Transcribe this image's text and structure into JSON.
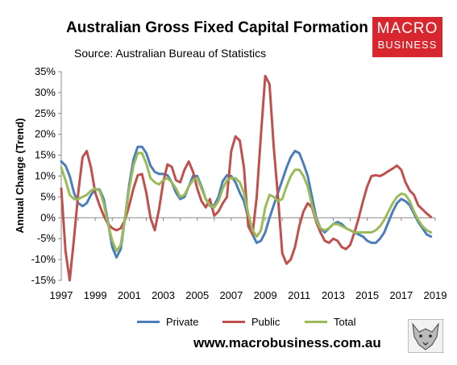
{
  "header": {
    "title": "Australian Gross Fixed Capital Formation",
    "subtitle": "Source: Australian Bureau of Statistics"
  },
  "logo": {
    "line1": "MACRO",
    "line2": "BUSINESS",
    "color": "#d7262e"
  },
  "footer": {
    "website": "www.macrobusiness.com.au"
  },
  "chart_data": {
    "type": "line",
    "title": "Australian Gross Fixed Capital Formation",
    "subtitle": "Source: Australian Bureau of Statistics",
    "xlabel": "",
    "ylabel": "Annual Change (Trend)",
    "xlim": [
      1997,
      2019
    ],
    "ylim": [
      -15,
      35
    ],
    "x_ticks": [
      "1997",
      "1999",
      "2001",
      "2003",
      "2005",
      "2007",
      "2009",
      "2011",
      "2013",
      "2015",
      "2017",
      "2019"
    ],
    "y_ticks": [
      "35%",
      "30%",
      "25%",
      "20%",
      "15%",
      "10%",
      "5%",
      "0%",
      "-5%",
      "-10%",
      "-15%"
    ],
    "grid": false,
    "legend_position": "bottom",
    "series": [
      {
        "name": "Private",
        "color": "#4a7ebb",
        "points": [
          [
            1997.0,
            13.5
          ],
          [
            1997.25,
            12.5
          ],
          [
            1997.5,
            10
          ],
          [
            1997.75,
            6
          ],
          [
            1998.0,
            3.5
          ],
          [
            1998.25,
            2.8
          ],
          [
            1998.5,
            3.5
          ],
          [
            1998.75,
            5.5
          ],
          [
            1999.0,
            6.8
          ],
          [
            1999.25,
            6.8
          ],
          [
            1999.5,
            4.5
          ],
          [
            1999.75,
            -1
          ],
          [
            2000.0,
            -7
          ],
          [
            2000.25,
            -9.5
          ],
          [
            2000.5,
            -7.5
          ],
          [
            2000.75,
            0
          ],
          [
            2001.0,
            8
          ],
          [
            2001.25,
            14
          ],
          [
            2001.5,
            17
          ],
          [
            2001.75,
            17
          ],
          [
            2002.0,
            15.5
          ],
          [
            2002.25,
            12.5
          ],
          [
            2002.5,
            11
          ],
          [
            2002.75,
            10.5
          ],
          [
            2003.0,
            10.5
          ],
          [
            2003.25,
            10.2
          ],
          [
            2003.5,
            8.5
          ],
          [
            2003.75,
            6
          ],
          [
            2004.0,
            4.5
          ],
          [
            2004.25,
            5
          ],
          [
            2004.5,
            7.5
          ],
          [
            2004.75,
            10
          ],
          [
            2005.0,
            10
          ],
          [
            2005.25,
            7.5
          ],
          [
            2005.5,
            4.5
          ],
          [
            2005.75,
            2.8
          ],
          [
            2006.0,
            3
          ],
          [
            2006.25,
            5
          ],
          [
            2006.5,
            8.8
          ],
          [
            2006.75,
            10.2
          ],
          [
            2007.0,
            10
          ],
          [
            2007.25,
            8.5
          ],
          [
            2007.5,
            6
          ],
          [
            2007.75,
            4
          ],
          [
            2008.0,
            0
          ],
          [
            2008.25,
            -4
          ],
          [
            2008.5,
            -6
          ],
          [
            2008.75,
            -5.5
          ],
          [
            2009.0,
            -3.5
          ],
          [
            2009.25,
            0
          ],
          [
            2009.5,
            3
          ],
          [
            2009.75,
            6
          ],
          [
            2010.0,
            9
          ],
          [
            2010.25,
            12
          ],
          [
            2010.5,
            14.5
          ],
          [
            2010.75,
            16
          ],
          [
            2011.0,
            15.5
          ],
          [
            2011.25,
            13
          ],
          [
            2011.5,
            10
          ],
          [
            2011.75,
            5
          ],
          [
            2012.0,
            0
          ],
          [
            2012.25,
            -2.5
          ],
          [
            2012.5,
            -3.5
          ],
          [
            2012.75,
            -2.5
          ],
          [
            2013.0,
            -1.5
          ],
          [
            2013.25,
            -1
          ],
          [
            2013.5,
            -1.5
          ],
          [
            2013.75,
            -2.5
          ],
          [
            2014.0,
            -3
          ],
          [
            2014.25,
            -3.5
          ],
          [
            2014.5,
            -4
          ],
          [
            2014.75,
            -4.5
          ],
          [
            2015.0,
            -5.5
          ],
          [
            2015.25,
            -6
          ],
          [
            2015.5,
            -6
          ],
          [
            2015.75,
            -5
          ],
          [
            2016.0,
            -3.5
          ],
          [
            2016.25,
            -1
          ],
          [
            2016.5,
            1.5
          ],
          [
            2016.75,
            3.5
          ],
          [
            2017.0,
            4.5
          ],
          [
            2017.25,
            4
          ],
          [
            2017.5,
            3
          ],
          [
            2017.75,
            1
          ],
          [
            2018.0,
            -1
          ],
          [
            2018.25,
            -2.5
          ],
          [
            2018.5,
            -4
          ],
          [
            2018.75,
            -4.5
          ]
        ]
      },
      {
        "name": "Public",
        "color": "#c0504d",
        "points": [
          [
            1997.0,
            7
          ],
          [
            1997.25,
            -8
          ],
          [
            1997.5,
            -15
          ],
          [
            1997.75,
            -5
          ],
          [
            1998.0,
            6
          ],
          [
            1998.25,
            14.5
          ],
          [
            1998.5,
            16
          ],
          [
            1998.75,
            12
          ],
          [
            1999.0,
            6
          ],
          [
            1999.25,
            3
          ],
          [
            1999.5,
            0.5
          ],
          [
            1999.75,
            -1.5
          ],
          [
            2000.0,
            -2.5
          ],
          [
            2000.25,
            -3
          ],
          [
            2000.5,
            -2.5
          ],
          [
            2000.75,
            -0.5
          ],
          [
            2001.0,
            3
          ],
          [
            2001.25,
            7
          ],
          [
            2001.5,
            10.2
          ],
          [
            2001.75,
            10.5
          ],
          [
            2002.0,
            6
          ],
          [
            2002.25,
            0
          ],
          [
            2002.5,
            -3
          ],
          [
            2002.75,
            2
          ],
          [
            2003.0,
            8.5
          ],
          [
            2003.25,
            12.8
          ],
          [
            2003.5,
            12.2
          ],
          [
            2003.75,
            9
          ],
          [
            2004.0,
            8.5
          ],
          [
            2004.25,
            11.5
          ],
          [
            2004.5,
            13.5
          ],
          [
            2004.75,
            11
          ],
          [
            2005.0,
            7
          ],
          [
            2005.25,
            4
          ],
          [
            2005.5,
            2.5
          ],
          [
            2005.75,
            4.5
          ],
          [
            2006.0,
            0.5
          ],
          [
            2006.25,
            1.5
          ],
          [
            2006.5,
            3.5
          ],
          [
            2006.75,
            5
          ],
          [
            2007.0,
            16
          ],
          [
            2007.25,
            19.5
          ],
          [
            2007.5,
            18.5
          ],
          [
            2007.75,
            12
          ],
          [
            2008.0,
            -2
          ],
          [
            2008.25,
            -4
          ],
          [
            2008.5,
            5
          ],
          [
            2008.75,
            20
          ],
          [
            2009.0,
            34
          ],
          [
            2009.25,
            32
          ],
          [
            2009.5,
            17
          ],
          [
            2009.75,
            5
          ],
          [
            2010.0,
            -8.5
          ],
          [
            2010.25,
            -11
          ],
          [
            2010.5,
            -10
          ],
          [
            2010.75,
            -7
          ],
          [
            2011.0,
            -2
          ],
          [
            2011.25,
            1.5
          ],
          [
            2011.5,
            3.5
          ],
          [
            2011.75,
            2.5
          ],
          [
            2012.0,
            -1
          ],
          [
            2012.25,
            -3.5
          ],
          [
            2012.5,
            -5.5
          ],
          [
            2012.75,
            -6
          ],
          [
            2013.0,
            -5
          ],
          [
            2013.25,
            -5.5
          ],
          [
            2013.5,
            -7
          ],
          [
            2013.75,
            -7.5
          ],
          [
            2014.0,
            -6.5
          ],
          [
            2014.25,
            -3.5
          ],
          [
            2014.5,
            0
          ],
          [
            2014.75,
            4
          ],
          [
            2015.0,
            7.5
          ],
          [
            2015.25,
            10
          ],
          [
            2015.5,
            10.2
          ],
          [
            2015.75,
            10
          ],
          [
            2016.0,
            10.5
          ],
          [
            2016.25,
            11.2
          ],
          [
            2016.5,
            11.8
          ],
          [
            2016.75,
            12.5
          ],
          [
            2017.0,
            11.5
          ],
          [
            2017.25,
            8.5
          ],
          [
            2017.5,
            6.5
          ],
          [
            2017.75,
            5.5
          ],
          [
            2018.0,
            3
          ],
          [
            2018.25,
            2
          ],
          [
            2018.5,
            1
          ],
          [
            2018.75,
            0.2
          ]
        ]
      },
      {
        "name": "Total",
        "color": "#9bbb59",
        "points": [
          [
            1997.0,
            12
          ],
          [
            1997.25,
            9
          ],
          [
            1997.5,
            5.5
          ],
          [
            1997.75,
            4.5
          ],
          [
            1998.0,
            4.5
          ],
          [
            1998.25,
            5
          ],
          [
            1998.5,
            5.5
          ],
          [
            1998.75,
            6.5
          ],
          [
            1999.0,
            7
          ],
          [
            1999.25,
            6.5
          ],
          [
            1999.5,
            3.5
          ],
          [
            1999.75,
            -1.5
          ],
          [
            2000.0,
            -5.5
          ],
          [
            2000.25,
            -8
          ],
          [
            2000.5,
            -6.5
          ],
          [
            2000.75,
            0
          ],
          [
            2001.0,
            7
          ],
          [
            2001.25,
            12.5
          ],
          [
            2001.5,
            15.5
          ],
          [
            2001.75,
            15.5
          ],
          [
            2002.0,
            13
          ],
          [
            2002.25,
            9.5
          ],
          [
            2002.5,
            8.5
          ],
          [
            2002.75,
            8
          ],
          [
            2003.0,
            9
          ],
          [
            2003.25,
            9.5
          ],
          [
            2003.5,
            8.5
          ],
          [
            2003.75,
            7
          ],
          [
            2004.0,
            5
          ],
          [
            2004.25,
            5.5
          ],
          [
            2004.5,
            7.5
          ],
          [
            2004.75,
            9
          ],
          [
            2005.0,
            9.5
          ],
          [
            2005.25,
            7
          ],
          [
            2005.5,
            4.5
          ],
          [
            2005.75,
            3
          ],
          [
            2006.0,
            2.5
          ],
          [
            2006.25,
            4
          ],
          [
            2006.5,
            7
          ],
          [
            2006.75,
            9
          ],
          [
            2007.0,
            9.5
          ],
          [
            2007.25,
            9.5
          ],
          [
            2007.5,
            8.5
          ],
          [
            2007.75,
            6
          ],
          [
            2008.0,
            1
          ],
          [
            2008.25,
            -3
          ],
          [
            2008.5,
            -4.5
          ],
          [
            2008.75,
            -3
          ],
          [
            2009.0,
            2.5
          ],
          [
            2009.25,
            5.5
          ],
          [
            2009.5,
            5
          ],
          [
            2009.75,
            4
          ],
          [
            2010.0,
            4.5
          ],
          [
            2010.25,
            7.5
          ],
          [
            2010.5,
            10
          ],
          [
            2010.75,
            11.5
          ],
          [
            2011.0,
            11.5
          ],
          [
            2011.25,
            10
          ],
          [
            2011.5,
            7.5
          ],
          [
            2011.75,
            3
          ],
          [
            2012.0,
            -0.5
          ],
          [
            2012.25,
            -2.5
          ],
          [
            2012.5,
            -3
          ],
          [
            2012.75,
            -2.5
          ],
          [
            2013.0,
            -1.5
          ],
          [
            2013.25,
            -1.5
          ],
          [
            2013.5,
            -2
          ],
          [
            2013.75,
            -2.5
          ],
          [
            2014.0,
            -3
          ],
          [
            2014.25,
            -3.5
          ],
          [
            2014.5,
            -3.5
          ],
          [
            2014.75,
            -3.5
          ],
          [
            2015.0,
            -3.5
          ],
          [
            2015.25,
            -3.5
          ],
          [
            2015.5,
            -3
          ],
          [
            2015.75,
            -2
          ],
          [
            2016.0,
            -0.5
          ],
          [
            2016.25,
            1.5
          ],
          [
            2016.5,
            3.5
          ],
          [
            2016.75,
            5
          ],
          [
            2017.0,
            5.8
          ],
          [
            2017.25,
            5.5
          ],
          [
            2017.5,
            4
          ],
          [
            2017.75,
            1.5
          ],
          [
            2018.0,
            -0.5
          ],
          [
            2018.25,
            -2
          ],
          [
            2018.5,
            -3
          ],
          [
            2018.75,
            -3.5
          ]
        ]
      }
    ]
  }
}
